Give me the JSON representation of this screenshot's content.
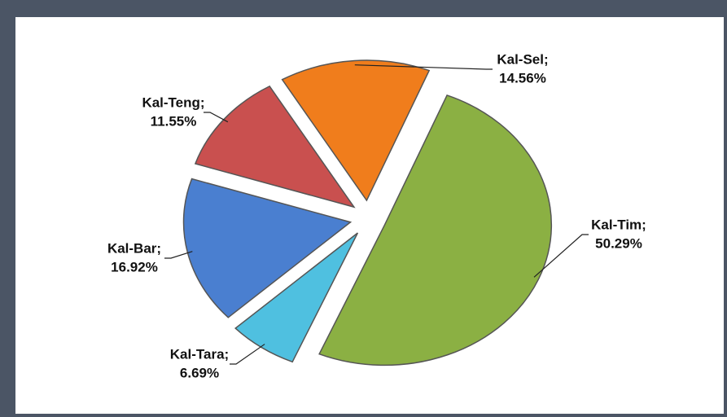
{
  "chart_data": {
    "type": "pie",
    "categories": [
      "Kal-Tim;",
      "Kal-Tara;",
      "Kal-Bar;",
      "Kal-Teng;",
      "Kal-Sel;"
    ],
    "values": [
      50.29,
      6.69,
      16.92,
      11.55,
      14.56
    ],
    "value_labels": [
      "50.29%",
      "6.69%",
      "16.92%",
      "11.55%",
      "14.56%"
    ],
    "colors": [
      "#8bb043",
      "#4fc0e0",
      "#4a7fd0",
      "#c9504f",
      "#f07d1c"
    ]
  }
}
